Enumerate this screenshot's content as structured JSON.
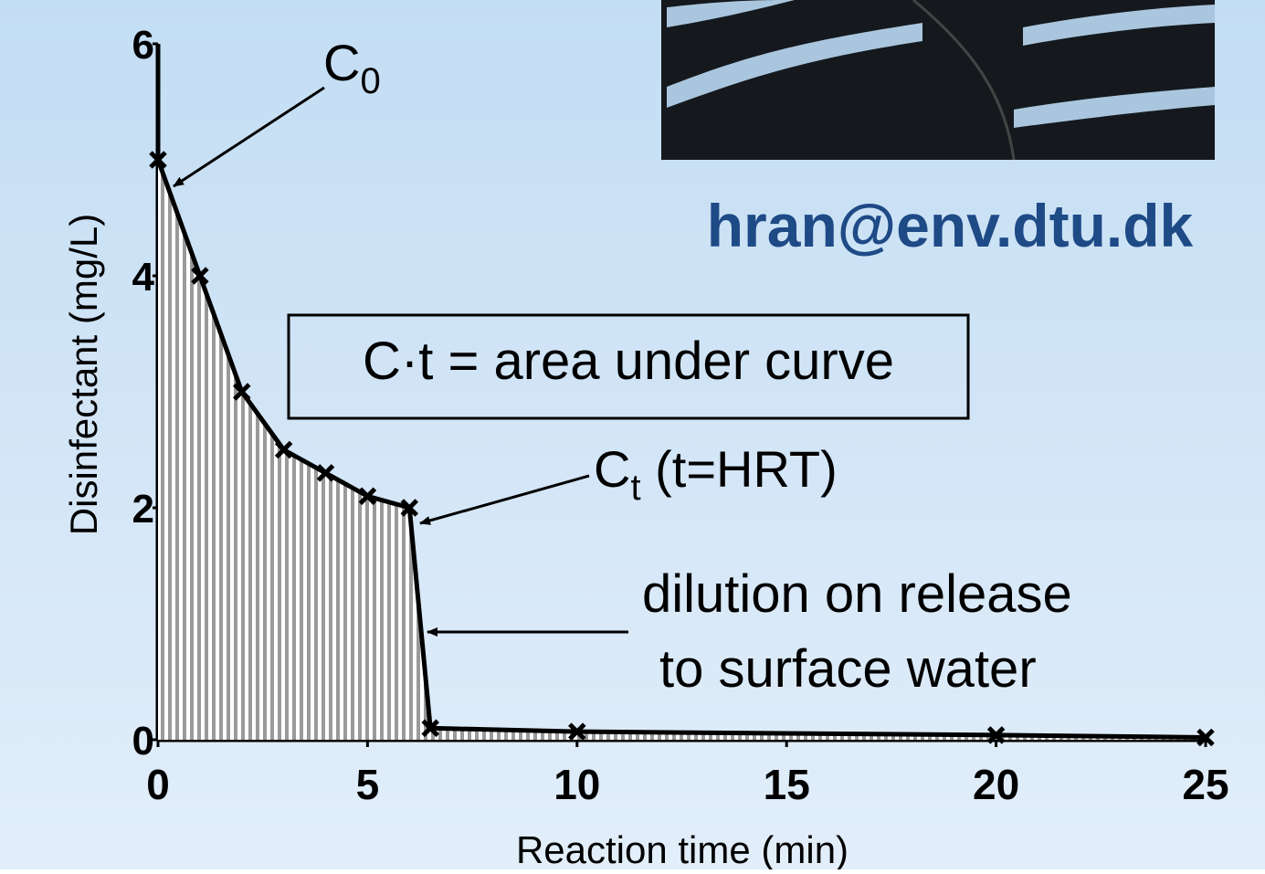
{
  "chart_data": {
    "type": "line",
    "x_label": "Reaction time (min)",
    "y_label": "Disinfectant (mg/L)",
    "x": [
      0,
      1,
      2,
      3,
      4,
      5,
      6,
      6.5,
      10,
      20,
      25
    ],
    "series": [
      {
        "color": "#000000",
        "values": [
          5,
          4,
          3,
          2.5,
          2.3,
          2.1,
          2.0,
          0.1,
          0.07,
          0.04,
          0.02
        ]
      }
    ],
    "xlim": [
      0,
      25
    ],
    "xticks": [
      0,
      5,
      10,
      15,
      20,
      25
    ],
    "ylim": [
      0,
      6
    ],
    "yticks": [
      0,
      2,
      4,
      6
    ],
    "fill_under": true,
    "annotations": {
      "c0": {
        "text": "C",
        "sub": "0"
      },
      "ct": {
        "text": "C",
        "sub": "t",
        "suffix": " (t=HRT)"
      },
      "box": "C·t = area under curve",
      "dilution": [
        "dilution on release",
        "to surface water"
      ]
    },
    "email": "hran@env.dtu.dk"
  }
}
